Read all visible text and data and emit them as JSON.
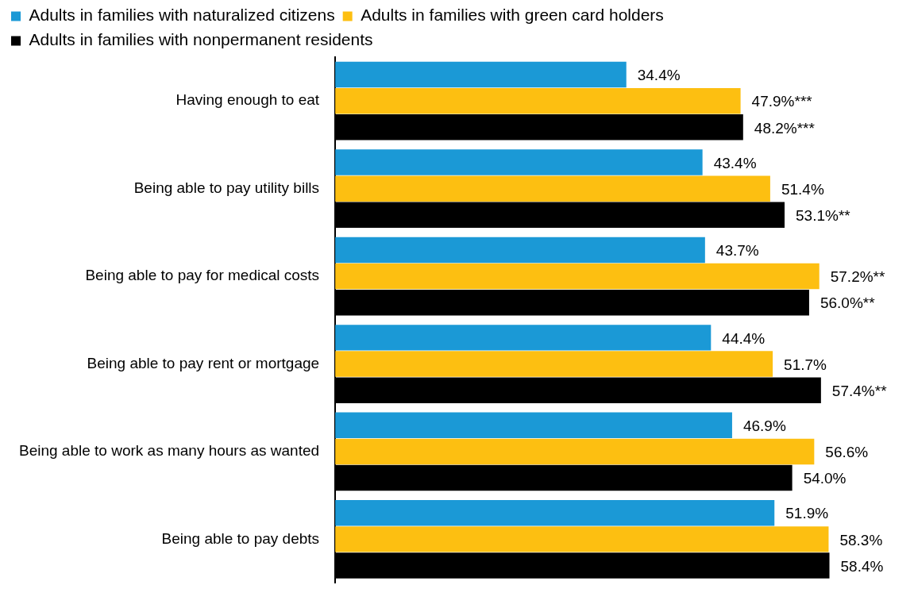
{
  "chart_data": {
    "type": "bar",
    "orientation": "horizontal",
    "legend": "top left",
    "categories": [
      "Having enough to eat",
      "Being able to pay utility bills",
      "Being able to pay for medical costs",
      "Being able to pay rent or mortgage",
      "Being able to work as many hours as wanted",
      "Being able to pay debts"
    ],
    "series": [
      {
        "name": "Adults in families with naturalized citizens",
        "color": "#1b99d6",
        "values": [
          34.4,
          43.4,
          43.7,
          44.4,
          46.9,
          51.9
        ],
        "value_labels": [
          "34.4%",
          "43.4%",
          "43.7%",
          "44.4%",
          "46.9%",
          "51.9%"
        ]
      },
      {
        "name": "Adults in families with green card holders",
        "color": "#fdbf11",
        "values": [
          47.9,
          51.4,
          57.2,
          51.7,
          56.6,
          58.3
        ],
        "value_labels": [
          "47.9%***",
          "51.4%",
          "57.2%**",
          "51.7%",
          "56.6%",
          "58.3%"
        ]
      },
      {
        "name": "Adults in families with nonpermanent residents",
        "color": "#000000",
        "values": [
          48.2,
          53.1,
          56.0,
          57.4,
          54.0,
          58.4
        ],
        "value_labels": [
          "48.2%***",
          "53.1%**",
          "56.0%**",
          "57.4%**",
          "54.0%",
          "58.4%"
        ]
      }
    ]
  }
}
